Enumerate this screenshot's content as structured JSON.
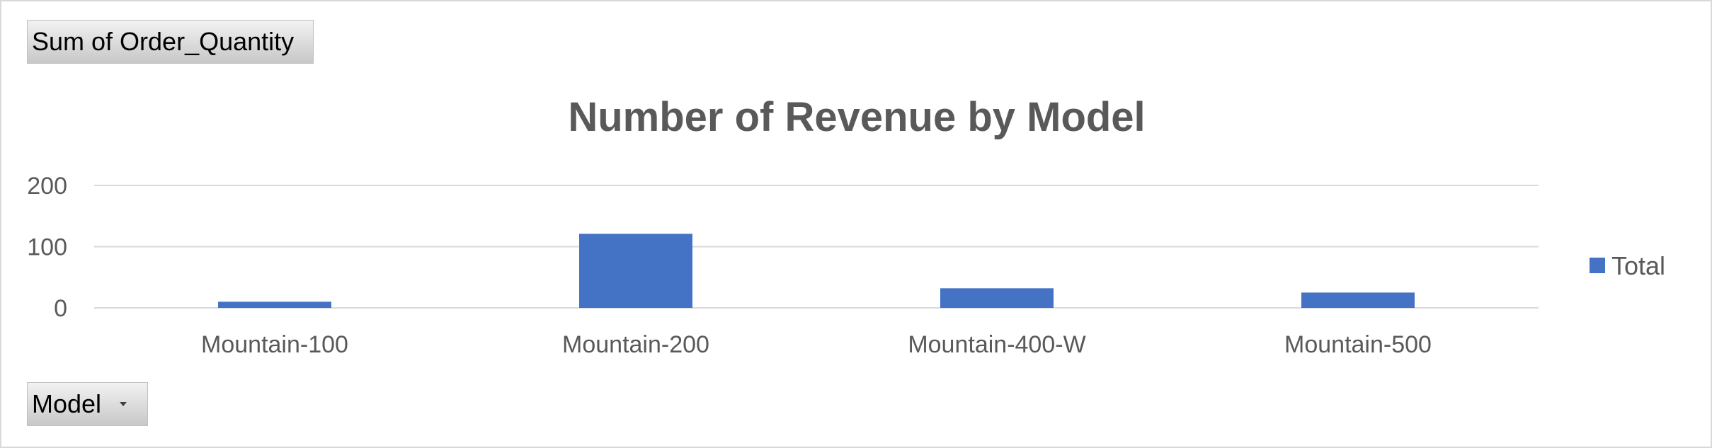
{
  "pivot": {
    "values_field": "Sum of Order_Quantity",
    "axis_field": "Model"
  },
  "colors": {
    "bar": "#4472c4",
    "gridline": "#d9d9d9",
    "text": "#595959"
  },
  "chart_data": {
    "type": "bar",
    "title": "Number of Revenue by Model",
    "categories": [
      "Mountain-100",
      "Mountain-200",
      "Mountain-400-W",
      "Mountain-500"
    ],
    "series": [
      {
        "name": "Total",
        "values": [
          10,
          121,
          32,
          25
        ]
      }
    ],
    "xlabel": "",
    "ylabel": "",
    "ylim": [
      0,
      200
    ],
    "yticks": [
      0,
      100,
      200
    ],
    "grid": true,
    "legend": "right"
  }
}
